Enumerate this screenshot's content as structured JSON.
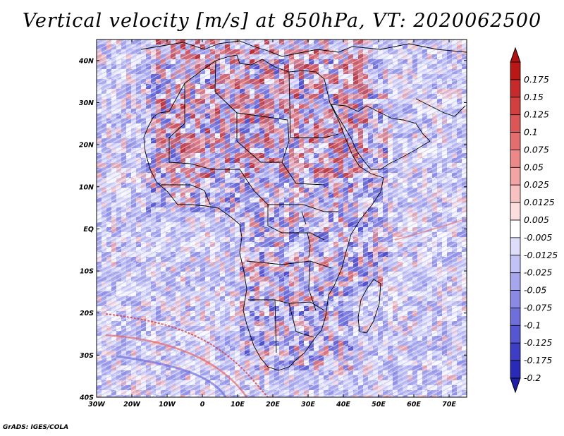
{
  "title": "Vertical velocity [m/s] at 850hPa, VT: 2020062500",
  "credit": "GrADS: IGES/COLA",
  "map": {
    "lon_range": [
      -30,
      75
    ],
    "lat_range": [
      -40,
      45
    ],
    "lon_ticks": [
      {
        "value": -30,
        "label": "30W"
      },
      {
        "value": -20,
        "label": "20W"
      },
      {
        "value": -10,
        "label": "10W"
      },
      {
        "value": 0,
        "label": "0"
      },
      {
        "value": 10,
        "label": "10E"
      },
      {
        "value": 20,
        "label": "20E"
      },
      {
        "value": 30,
        "label": "30E"
      },
      {
        "value": 40,
        "label": "40E"
      },
      {
        "value": 50,
        "label": "50E"
      },
      {
        "value": 60,
        "label": "60E"
      },
      {
        "value": 70,
        "label": "70E"
      }
    ],
    "lat_ticks": [
      {
        "value": 40,
        "label": "40N"
      },
      {
        "value": 30,
        "label": "30N"
      },
      {
        "value": 20,
        "label": "20N"
      },
      {
        "value": 10,
        "label": "10N"
      },
      {
        "value": 0,
        "label": "EQ"
      },
      {
        "value": -10,
        "label": "10S"
      },
      {
        "value": -20,
        "label": "20S"
      },
      {
        "value": -30,
        "label": "30S"
      },
      {
        "value": -40,
        "label": "40S"
      }
    ]
  },
  "colorbar": {
    "levels": [
      {
        "label": "0.175",
        "color": "#bb1717"
      },
      {
        "label": "0.15",
        "color": "#c72a2a"
      },
      {
        "label": "0.125",
        "color": "#d23f3f"
      },
      {
        "label": "0.1",
        "color": "#dc5656"
      },
      {
        "label": "0.075",
        "color": "#e46e6e"
      },
      {
        "label": "0.05",
        "color": "#ec8888"
      },
      {
        "label": "0.025",
        "color": "#f3a4a4"
      },
      {
        "label": "0.0125",
        "color": "#f8c2c2"
      },
      {
        "label": "0.005",
        "color": "#fcdede"
      },
      {
        "label": "-0.005",
        "color": "#ffffff"
      },
      {
        "label": "-0.0125",
        "color": "#dedefc"
      },
      {
        "label": "-0.025",
        "color": "#c2c2f6"
      },
      {
        "label": "-0.05",
        "color": "#a6a6ee"
      },
      {
        "label": "-0.075",
        "color": "#8a8ae6"
      },
      {
        "label": "-0.1",
        "color": "#6f6fdc"
      },
      {
        "label": "-0.125",
        "color": "#5656d2"
      },
      {
        "label": "-0.175",
        "color": "#3d3dc6"
      },
      {
        "label": "-0.2",
        "color": "#2a2ab8"
      }
    ],
    "top_color": "#b01212",
    "bottom_color": "#1f1fa8"
  }
}
